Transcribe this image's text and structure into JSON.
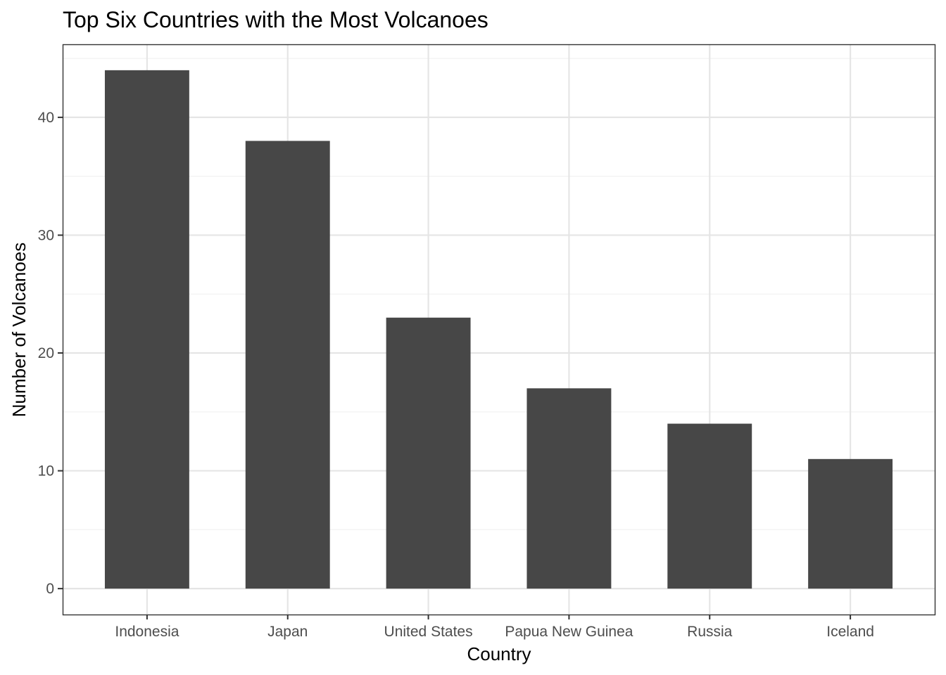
{
  "chart_data": {
    "type": "bar",
    "title": "Top Six Countries with the Most Volcanoes",
    "xlabel": "Country",
    "ylabel": "Number of Volcanoes",
    "categories": [
      "Indonesia",
      "Japan",
      "United States",
      "Papua New Guinea",
      "Russia",
      "Iceland"
    ],
    "values": [
      44,
      38,
      23,
      17,
      14,
      11
    ],
    "ylim": [
      -2.2,
      46.2
    ],
    "yticks": [
      0,
      10,
      20,
      30,
      40
    ],
    "ytick_labels": [
      "0",
      "10",
      "20",
      "30",
      "40"
    ],
    "grid": true,
    "legend": "none",
    "bar_color": "#474747"
  }
}
